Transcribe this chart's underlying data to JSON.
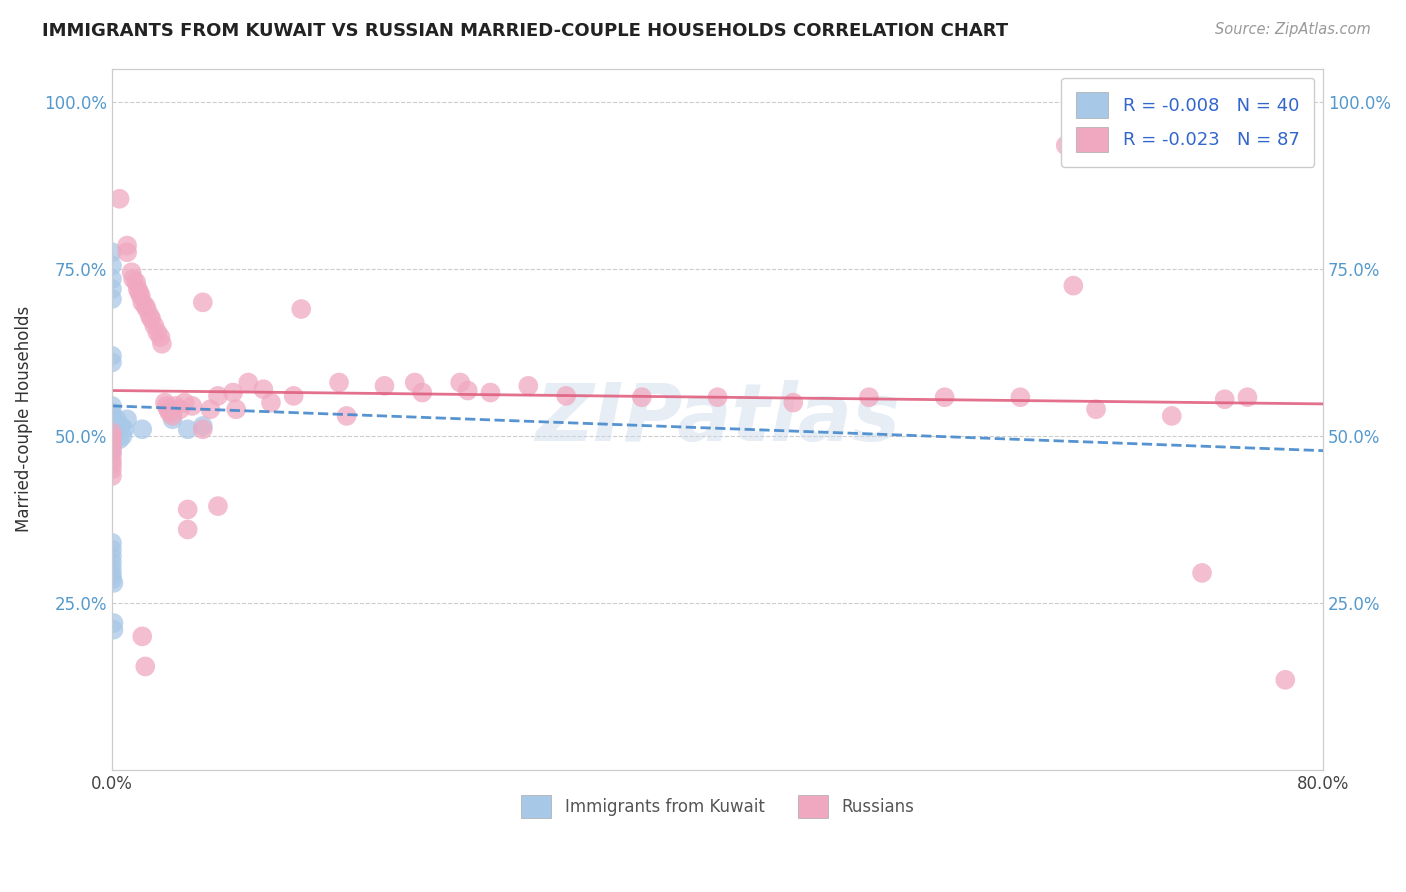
{
  "title": "IMMIGRANTS FROM KUWAIT VS RUSSIAN MARRIED-COUPLE HOUSEHOLDS CORRELATION CHART",
  "source": "Source: ZipAtlas.com",
  "ylabel": "Married-couple Households",
  "xlim": [
    0.0,
    0.8
  ],
  "ylim": [
    0.0,
    1.05
  ],
  "ytick_positions": [
    0.25,
    0.5,
    0.75,
    1.0
  ],
  "ytick_labels": [
    "25.0%",
    "50.0%",
    "75.0%",
    "100.0%"
  ],
  "xtick_positions": [
    0.0,
    0.8
  ],
  "xtick_labels": [
    "0.0%",
    "80.0%"
  ],
  "blue_color": "#a8c8e8",
  "pink_color": "#f0a8c0",
  "trendline_blue_color": "#4488cc",
  "trendline_pink_color": "#e06080",
  "blue_trendline": [
    [
      0.0,
      0.545
    ],
    [
      0.8,
      0.478
    ]
  ],
  "pink_trendline": [
    [
      0.0,
      0.568
    ],
    [
      0.8,
      0.548
    ]
  ],
  "watermark": "ZIPatlas",
  "kuwait_points": [
    [
      0.0,
      0.775
    ],
    [
      0.0,
      0.755
    ],
    [
      0.0,
      0.735
    ],
    [
      0.0,
      0.72
    ],
    [
      0.0,
      0.705
    ],
    [
      0.0,
      0.62
    ],
    [
      0.0,
      0.61
    ],
    [
      0.0,
      0.545
    ],
    [
      0.0,
      0.535
    ],
    [
      0.0,
      0.525
    ],
    [
      0.0,
      0.515
    ],
    [
      0.0,
      0.508
    ],
    [
      0.0,
      0.5
    ],
    [
      0.0,
      0.492
    ],
    [
      0.0,
      0.485
    ],
    [
      0.0,
      0.475
    ],
    [
      0.0,
      0.34
    ],
    [
      0.0,
      0.33
    ],
    [
      0.0,
      0.32
    ],
    [
      0.0,
      0.31
    ],
    [
      0.0,
      0.3
    ],
    [
      0.0,
      0.292
    ],
    [
      0.0,
      0.285
    ],
    [
      0.001,
      0.28
    ],
    [
      0.001,
      0.22
    ],
    [
      0.001,
      0.21
    ],
    [
      0.002,
      0.52
    ],
    [
      0.002,
      0.505
    ],
    [
      0.003,
      0.525
    ],
    [
      0.004,
      0.51
    ],
    [
      0.005,
      0.495
    ],
    [
      0.006,
      0.515
    ],
    [
      0.007,
      0.5
    ],
    [
      0.008,
      0.51
    ],
    [
      0.01,
      0.525
    ],
    [
      0.02,
      0.51
    ],
    [
      0.04,
      0.525
    ],
    [
      0.05,
      0.51
    ],
    [
      0.06,
      0.515
    ]
  ],
  "russian_points": [
    [
      0.0,
      0.505
    ],
    [
      0.0,
      0.498
    ],
    [
      0.0,
      0.49
    ],
    [
      0.0,
      0.483
    ],
    [
      0.0,
      0.475
    ],
    [
      0.0,
      0.465
    ],
    [
      0.0,
      0.458
    ],
    [
      0.0,
      0.45
    ],
    [
      0.0,
      0.44
    ],
    [
      0.005,
      0.855
    ],
    [
      0.01,
      0.785
    ],
    [
      0.01,
      0.775
    ],
    [
      0.013,
      0.745
    ],
    [
      0.014,
      0.735
    ],
    [
      0.016,
      0.73
    ],
    [
      0.017,
      0.72
    ],
    [
      0.018,
      0.715
    ],
    [
      0.019,
      0.71
    ],
    [
      0.02,
      0.7
    ],
    [
      0.022,
      0.695
    ],
    [
      0.023,
      0.69
    ],
    [
      0.025,
      0.68
    ],
    [
      0.026,
      0.675
    ],
    [
      0.028,
      0.665
    ],
    [
      0.03,
      0.655
    ],
    [
      0.032,
      0.648
    ],
    [
      0.033,
      0.638
    ],
    [
      0.02,
      0.2
    ],
    [
      0.022,
      0.155
    ],
    [
      0.035,
      0.55
    ],
    [
      0.036,
      0.545
    ],
    [
      0.037,
      0.54
    ],
    [
      0.038,
      0.535
    ],
    [
      0.04,
      0.53
    ],
    [
      0.042,
      0.545
    ],
    [
      0.045,
      0.54
    ],
    [
      0.048,
      0.55
    ],
    [
      0.05,
      0.39
    ],
    [
      0.05,
      0.36
    ],
    [
      0.053,
      0.545
    ],
    [
      0.06,
      0.7
    ],
    [
      0.06,
      0.51
    ],
    [
      0.065,
      0.54
    ],
    [
      0.07,
      0.56
    ],
    [
      0.07,
      0.395
    ],
    [
      0.08,
      0.565
    ],
    [
      0.082,
      0.54
    ],
    [
      0.09,
      0.58
    ],
    [
      0.1,
      0.57
    ],
    [
      0.105,
      0.55
    ],
    [
      0.12,
      0.56
    ],
    [
      0.125,
      0.69
    ],
    [
      0.15,
      0.58
    ],
    [
      0.155,
      0.53
    ],
    [
      0.18,
      0.575
    ],
    [
      0.2,
      0.58
    ],
    [
      0.205,
      0.565
    ],
    [
      0.23,
      0.58
    ],
    [
      0.235,
      0.568
    ],
    [
      0.25,
      0.565
    ],
    [
      0.275,
      0.575
    ],
    [
      0.3,
      0.56
    ],
    [
      0.35,
      0.558
    ],
    [
      0.4,
      0.558
    ],
    [
      0.45,
      0.55
    ],
    [
      0.5,
      0.558
    ],
    [
      0.55,
      0.558
    ],
    [
      0.6,
      0.558
    ],
    [
      0.63,
      0.935
    ],
    [
      0.635,
      0.725
    ],
    [
      0.65,
      0.54
    ],
    [
      0.7,
      0.53
    ],
    [
      0.72,
      0.295
    ],
    [
      0.735,
      0.555
    ],
    [
      0.75,
      0.558
    ],
    [
      0.775,
      0.135
    ]
  ]
}
